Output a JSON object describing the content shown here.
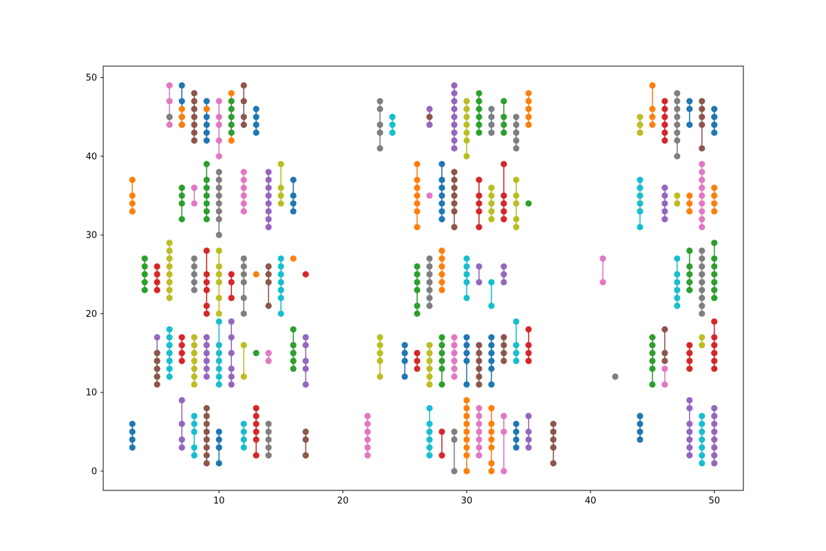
{
  "chart_data": {
    "type": "scatter",
    "title": "",
    "xlabel": "",
    "ylabel": "",
    "xlim": [
      0.65,
      52.35
    ],
    "ylim": [
      -2.45,
      51.45
    ],
    "xticks": [
      10,
      20,
      30,
      40,
      50
    ],
    "yticks": [
      0,
      10,
      20,
      30,
      40,
      50
    ],
    "grid": false,
    "legend": "none",
    "palette": [
      "#1f77b4",
      "#ff7f0e",
      "#2ca02c",
      "#d62728",
      "#9467bd",
      "#8c564b",
      "#e377c2",
      "#7f7f7f",
      "#bcbd22",
      "#17becf"
    ],
    "groups": [
      {
        "x": 3,
        "y": [
          3,
          4,
          5,
          6
        ]
      },
      {
        "x": 3,
        "y": [
          33,
          34,
          35,
          37
        ]
      },
      {
        "x": 4,
        "y": [
          23,
          24,
          25,
          26,
          27
        ]
      },
      {
        "x": 5,
        "y": [
          23,
          24,
          25,
          26
        ]
      },
      {
        "x": 5,
        "y": [
          12,
          13,
          14,
          15,
          17
        ]
      },
      {
        "x": 5,
        "y": [
          11,
          12,
          13,
          14,
          15
        ]
      },
      {
        "x": 6,
        "y": [
          44,
          45,
          47,
          49
        ]
      },
      {
        "x": 6,
        "y": [
          45
        ]
      },
      {
        "x": 6,
        "y": [
          22,
          23,
          24,
          25,
          26,
          27,
          28,
          29
        ]
      },
      {
        "x": 6,
        "y": [
          12,
          13,
          14,
          15,
          16,
          17,
          18
        ]
      },
      {
        "x": 7,
        "y": [
          44,
          45,
          47,
          49
        ]
      },
      {
        "x": 7,
        "y": [
          44,
          45,
          46
        ]
      },
      {
        "x": 7,
        "y": [
          32,
          34,
          35,
          36
        ]
      },
      {
        "x": 7,
        "y": [
          14,
          15,
          16,
          17
        ]
      },
      {
        "x": 7,
        "y": [
          3,
          4,
          6,
          9
        ]
      },
      {
        "x": 8,
        "y": [
          42,
          43,
          44,
          45,
          46,
          47,
          48
        ]
      },
      {
        "x": 8,
        "y": [
          34,
          36
        ]
      },
      {
        "x": 8,
        "y": [
          23,
          24,
          25,
          26,
          27
        ]
      },
      {
        "x": 8,
        "y": [
          11,
          12,
          13,
          14,
          15,
          16,
          17
        ]
      },
      {
        "x": 8,
        "y": [
          2,
          3,
          5,
          6,
          7
        ]
      },
      {
        "x": 9,
        "y": [
          42,
          43,
          44,
          45,
          46,
          47
        ]
      },
      {
        "x": 9,
        "y": [
          46
        ]
      },
      {
        "x": 9,
        "y": [
          32,
          33,
          34,
          35,
          36,
          37,
          39
        ]
      },
      {
        "x": 9,
        "y": [
          20,
          21,
          23,
          24,
          25,
          28
        ]
      },
      {
        "x": 9,
        "y": [
          12,
          13,
          14,
          15,
          16,
          17
        ]
      },
      {
        "x": 9,
        "y": [
          1,
          2,
          3,
          4,
          5,
          6,
          7,
          8
        ]
      },
      {
        "x": 10,
        "y": [
          40,
          42,
          44,
          45,
          47
        ]
      },
      {
        "x": 10,
        "y": [
          30,
          32,
          33,
          34,
          35,
          36,
          37,
          38
        ]
      },
      {
        "x": 10,
        "y": [
          20,
          22,
          24,
          25,
          26,
          28
        ]
      },
      {
        "x": 10,
        "y": [
          11,
          12,
          13,
          14,
          15,
          16,
          19
        ]
      },
      {
        "x": 10,
        "y": [
          1,
          3,
          4,
          5
        ]
      },
      {
        "x": 11,
        "y": [
          42,
          48
        ]
      },
      {
        "x": 11,
        "y": [
          43,
          44,
          45,
          46,
          47
        ]
      },
      {
        "x": 11,
        "y": [
          22,
          24,
          25
        ]
      },
      {
        "x": 11,
        "y": [
          11,
          12,
          13,
          15,
          17,
          19
        ]
      },
      {
        "x": 12,
        "y": [
          44,
          45,
          47,
          49
        ]
      },
      {
        "x": 12,
        "y": [
          33,
          34,
          35,
          36,
          37,
          38
        ]
      },
      {
        "x": 12,
        "y": [
          20,
          22,
          24,
          25,
          26,
          27
        ]
      },
      {
        "x": 12,
        "y": [
          12,
          16
        ]
      },
      {
        "x": 12,
        "y": [
          3,
          4,
          5,
          6
        ]
      },
      {
        "x": 13,
        "y": [
          43,
          44,
          45,
          46
        ]
      },
      {
        "x": 13,
        "y": [
          25
        ]
      },
      {
        "x": 13,
        "y": [
          15
        ]
      },
      {
        "x": 13,
        "y": [
          2,
          4,
          5,
          6,
          7,
          8
        ]
      },
      {
        "x": 14,
        "y": [
          31,
          32,
          33,
          34,
          35,
          36,
          37,
          38
        ]
      },
      {
        "x": 14,
        "y": [
          21,
          24,
          25,
          26
        ]
      },
      {
        "x": 14,
        "y": [
          14,
          15
        ]
      },
      {
        "x": 14,
        "y": [
          2,
          3,
          4,
          5,
          6
        ]
      },
      {
        "x": 15,
        "y": [
          34,
          35,
          36,
          39
        ]
      },
      {
        "x": 15,
        "y": [
          20,
          22,
          23,
          24,
          25,
          26,
          27
        ]
      },
      {
        "x": 16,
        "y": [
          33,
          34,
          35,
          37
        ]
      },
      {
        "x": 16,
        "y": [
          27
        ]
      },
      {
        "x": 16,
        "y": [
          13,
          14,
          15,
          16,
          18
        ]
      },
      {
        "x": 17,
        "y": [
          25
        ]
      },
      {
        "x": 17,
        "y": [
          11,
          13,
          14,
          16,
          17
        ]
      },
      {
        "x": 17,
        "y": [
          2,
          4,
          5
        ]
      },
      {
        "x": 22,
        "y": [
          2,
          3,
          4,
          5,
          6,
          7
        ]
      },
      {
        "x": 23,
        "y": [
          41,
          43,
          44,
          46,
          47
        ]
      },
      {
        "x": 23,
        "y": [
          12,
          14,
          15,
          16,
          17
        ]
      },
      {
        "x": 24,
        "y": [
          43,
          44,
          45
        ]
      },
      {
        "x": 25,
        "y": [
          12,
          14,
          15,
          16
        ]
      },
      {
        "x": 26,
        "y": [
          31,
          33,
          34,
          35,
          36,
          37,
          39
        ]
      },
      {
        "x": 26,
        "y": [
          20,
          21,
          23,
          24,
          25,
          26
        ]
      },
      {
        "x": 26,
        "y": [
          13,
          14,
          15
        ]
      },
      {
        "x": 27,
        "y": [
          44,
          46
        ]
      },
      {
        "x": 27,
        "y": [
          45
        ]
      },
      {
        "x": 27,
        "y": [
          35
        ]
      },
      {
        "x": 27,
        "y": [
          21,
          22,
          23,
          24,
          25,
          26,
          27
        ]
      },
      {
        "x": 27,
        "y": [
          11,
          12,
          13,
          14,
          15,
          16
        ]
      },
      {
        "x": 27,
        "y": [
          2,
          3,
          4,
          5,
          6,
          8
        ]
      },
      {
        "x": 28,
        "y": [
          32,
          33,
          34,
          35,
          36,
          37,
          39
        ]
      },
      {
        "x": 28,
        "y": [
          23,
          24,
          25,
          26,
          27,
          28
        ]
      },
      {
        "x": 28,
        "y": [
          11,
          13,
          14,
          15,
          16,
          17
        ]
      },
      {
        "x": 28,
        "y": [
          2,
          5
        ]
      },
      {
        "x": 29,
        "y": [
          41,
          42,
          43,
          44,
          45,
          46,
          47,
          48,
          49
        ]
      },
      {
        "x": 29,
        "y": [
          31,
          33,
          34,
          35,
          36,
          37,
          38
        ]
      },
      {
        "x": 29,
        "y": [
          12,
          13,
          14,
          15,
          16,
          17
        ]
      },
      {
        "x": 29,
        "y": [
          0,
          4,
          5
        ]
      },
      {
        "x": 30,
        "y": [
          40,
          42,
          43,
          44,
          45,
          46,
          47
        ]
      },
      {
        "x": 30,
        "y": [
          22,
          24,
          25,
          26,
          27
        ]
      },
      {
        "x": 30,
        "y": [
          11,
          14,
          15,
          16,
          17
        ]
      },
      {
        "x": 30,
        "y": [
          0,
          2,
          3,
          4,
          5,
          6,
          7,
          8,
          9
        ]
      },
      {
        "x": 31,
        "y": [
          43,
          44,
          45,
          46,
          47,
          48
        ]
      },
      {
        "x": 31,
        "y": [
          31,
          33,
          34,
          35,
          37
        ]
      },
      {
        "x": 31,
        "y": [
          24,
          26
        ]
      },
      {
        "x": 31,
        "y": [
          11,
          12,
          13,
          14,
          15,
          16
        ]
      },
      {
        "x": 31,
        "y": [
          2,
          3,
          4,
          5,
          6,
          7,
          8
        ]
      },
      {
        "x": 32,
        "y": [
          43,
          44,
          45,
          46
        ]
      },
      {
        "x": 32,
        "y": [
          32,
          33,
          34,
          35,
          36
        ]
      },
      {
        "x": 32,
        "y": [
          21,
          24
        ]
      },
      {
        "x": 32,
        "y": [
          11,
          13,
          14,
          15,
          16,
          17
        ]
      },
      {
        "x": 32,
        "y": [
          0,
          1,
          3,
          4,
          5,
          6,
          8
        ]
      },
      {
        "x": 33,
        "y": [
          43,
          44,
          45,
          47
        ]
      },
      {
        "x": 33,
        "y": [
          32,
          33,
          34,
          35,
          39
        ]
      },
      {
        "x": 33,
        "y": [
          24,
          25,
          26
        ]
      },
      {
        "x": 33,
        "y": [
          14,
          15,
          16,
          17
        ]
      },
      {
        "x": 33,
        "y": [
          0,
          5,
          7
        ]
      },
      {
        "x": 34,
        "y": [
          41,
          42,
          43,
          44,
          45
        ]
      },
      {
        "x": 34,
        "y": [
          31,
          32,
          34,
          35,
          37
        ]
      },
      {
        "x": 34,
        "y": [
          14,
          15,
          16,
          19
        ]
      },
      {
        "x": 34,
        "y": [
          3,
          4,
          5,
          6
        ]
      },
      {
        "x": 35,
        "y": [
          44,
          45,
          46,
          47,
          48
        ]
      },
      {
        "x": 35,
        "y": [
          34
        ]
      },
      {
        "x": 35,
        "y": [
          14,
          15,
          16,
          18
        ]
      },
      {
        "x": 35,
        "y": [
          3,
          4,
          5,
          7
        ]
      },
      {
        "x": 37,
        "y": [
          1,
          3,
          4,
          5,
          6
        ]
      },
      {
        "x": 41,
        "y": [
          24,
          27
        ]
      },
      {
        "x": 42,
        "y": [
          12
        ]
      },
      {
        "x": 44,
        "y": [
          43,
          44,
          45
        ]
      },
      {
        "x": 44,
        "y": [
          31,
          33,
          34,
          35,
          36,
          37
        ]
      },
      {
        "x": 44,
        "y": [
          4,
          5,
          6,
          7
        ]
      },
      {
        "x": 45,
        "y": [
          44,
          45,
          46,
          49
        ]
      },
      {
        "x": 45,
        "y": [
          11,
          13,
          14,
          15,
          16,
          17
        ]
      },
      {
        "x": 46,
        "y": [
          42,
          43,
          44,
          45,
          46,
          47
        ]
      },
      {
        "x": 46,
        "y": [
          32,
          33,
          34,
          35,
          36
        ]
      },
      {
        "x": 46,
        "y": [
          14,
          15,
          18
        ]
      },
      {
        "x": 46,
        "y": [
          11,
          13
        ]
      },
      {
        "x": 47,
        "y": [
          40,
          42,
          43,
          44,
          45,
          46,
          47,
          48
        ]
      },
      {
        "x": 47,
        "y": [
          34,
          35
        ]
      },
      {
        "x": 47,
        "y": [
          21,
          22,
          23,
          24,
          25,
          27
        ]
      },
      {
        "x": 48,
        "y": [
          44,
          46,
          47
        ]
      },
      {
        "x": 48,
        "y": [
          33,
          34,
          35
        ]
      },
      {
        "x": 48,
        "y": [
          23,
          24,
          25,
          26,
          28
        ]
      },
      {
        "x": 48,
        "y": [
          13,
          14,
          15,
          16
        ]
      },
      {
        "x": 48,
        "y": [
          2,
          3,
          4,
          5,
          6,
          8,
          9
        ]
      },
      {
        "x": 49,
        "y": [
          41,
          44,
          45,
          46,
          47
        ]
      },
      {
        "x": 49,
        "y": [
          31,
          32,
          33,
          34,
          35,
          36,
          37,
          38,
          39
        ]
      },
      {
        "x": 49,
        "y": [
          20,
          21,
          22,
          23,
          24,
          25,
          26,
          27,
          28
        ]
      },
      {
        "x": 49,
        "y": [
          16,
          17
        ]
      },
      {
        "x": 49,
        "y": [
          1,
          2,
          3,
          4,
          5,
          6,
          7
        ]
      },
      {
        "x": 50,
        "y": [
          43,
          44,
          45,
          46
        ]
      },
      {
        "x": 50,
        "y": [
          33,
          34,
          35,
          36
        ]
      },
      {
        "x": 50,
        "y": [
          22,
          23,
          24,
          25,
          26,
          27,
          29
        ]
      },
      {
        "x": 50,
        "y": [
          13,
          14,
          15,
          16,
          17,
          19
        ]
      },
      {
        "x": 50,
        "y": [
          1,
          2,
          3,
          4,
          5,
          6,
          7,
          8
        ]
      }
    ]
  }
}
